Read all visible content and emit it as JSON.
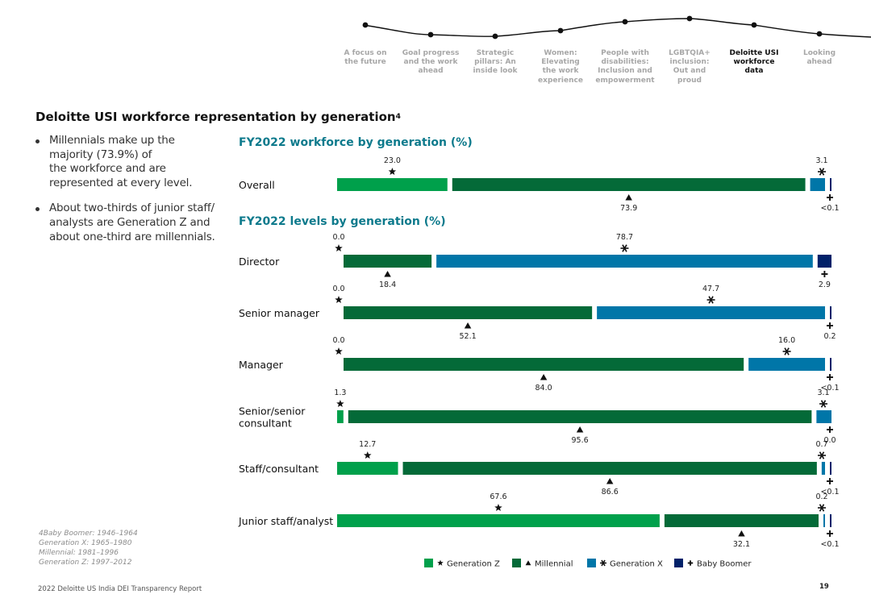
{
  "nav": {
    "items": [
      {
        "label": "A focus on the future",
        "lines": [
          "A focus on",
          "the future"
        ],
        "active": false
      },
      {
        "label": "Goal progress and the work ahead",
        "lines": [
          "Goal progress",
          "and the work",
          "ahead"
        ],
        "active": false
      },
      {
        "label": "Strategic pillars: An inside look",
        "lines": [
          "Strategic",
          "pillars: An",
          "inside look"
        ],
        "active": false
      },
      {
        "label": "Women: Elevating the work experience",
        "lines": [
          "Women:",
          "Elevating",
          "the work",
          "experience"
        ],
        "active": false
      },
      {
        "label": "People with disabilities: Inclusion and empowerment",
        "lines": [
          "People with",
          "disabilities:",
          "Inclusion and",
          "empowerment"
        ],
        "active": false
      },
      {
        "label": "LGBTQIA+ inclusion: Out and proud",
        "lines": [
          "LGBTQIA+",
          "inclusion:",
          "Out and",
          "proud"
        ],
        "active": false
      },
      {
        "label": "Deloitte USI workforce data",
        "lines": [
          "Deloitte USI",
          "workforce",
          "data"
        ],
        "active": true
      },
      {
        "label": "Looking ahead",
        "lines": [
          "Looking",
          "ahead"
        ],
        "active": false
      }
    ]
  },
  "page": {
    "title": "Deloitte USI workforce representation by generation",
    "title_sup": "4",
    "bullets": [
      {
        "lines": [
          "Millennials make up the",
          "majority (73.9%) of",
          "the workforce and are",
          "represented at every level."
        ]
      },
      {
        "lines": [
          "About two-thirds of junior staff/",
          "analysts are Generation Z and",
          "about one-third are millennials."
        ]
      }
    ],
    "footnote": [
      "4Baby Boomer: 1946–1964",
      "Generation X: 1965–1980",
      "Millennial: 1981–1996",
      "Generation Z: 1997–2012"
    ],
    "footer_text": "2022 Deloitte US India DEI Transparency Report",
    "page_number": "19"
  },
  "colors": {
    "gen_z": "#00a04b",
    "millennial": "#046a38",
    "gen_x": "#0076a8",
    "boomer": "#012169",
    "heading_teal": "#0d7a8c",
    "nav_line": "#111111"
  },
  "chart_data": [
    {
      "type": "bar",
      "orientation": "horizontal-stacked",
      "title": "FY2022 workforce by generation (%)",
      "categories": [
        "Overall"
      ],
      "series": [
        {
          "name": "Generation Z",
          "marker": "star",
          "values": [
            23.0
          ],
          "labels": [
            "23.0"
          ]
        },
        {
          "name": "Millennial",
          "marker": "triangle",
          "values": [
            73.9
          ],
          "labels": [
            "73.9"
          ]
        },
        {
          "name": "Generation X",
          "marker": "asterisk",
          "values": [
            3.1
          ],
          "labels": [
            "3.1"
          ]
        },
        {
          "name": "Baby Boomer",
          "marker": "cross",
          "values": [
            0.05
          ],
          "labels": [
            "<0.1"
          ]
        }
      ]
    },
    {
      "type": "bar",
      "orientation": "horizontal-stacked",
      "title": "FY2022 levels by generation (%)",
      "categories": [
        "Director",
        "Senior manager",
        "Manager",
        "Senior/senior consultant",
        "Staff/consultant",
        "Junior staff/analyst"
      ],
      "category_lines": [
        [
          "Director"
        ],
        [
          "Senior manager"
        ],
        [
          "Manager"
        ],
        [
          "Senior/senior",
          "consultant"
        ],
        [
          "Staff/consultant"
        ],
        [
          "Junior staff/analyst"
        ]
      ],
      "series": [
        {
          "name": "Generation Z",
          "marker": "star",
          "values": [
            0.0,
            0.0,
            0.0,
            1.3,
            12.7,
            67.6
          ],
          "labels": [
            "0.0",
            "0.0",
            "0.0",
            "1.3",
            "12.7",
            "67.6"
          ]
        },
        {
          "name": "Millennial",
          "marker": "triangle",
          "values": [
            18.4,
            52.1,
            84.0,
            95.6,
            86.6,
            32.1
          ],
          "labels": [
            "18.4",
            "52.1",
            "84.0",
            "95.6",
            "86.6",
            "32.1"
          ]
        },
        {
          "name": "Generation X",
          "marker": "asterisk",
          "values": [
            78.7,
            47.7,
            16.0,
            3.1,
            0.7,
            0.2
          ],
          "labels": [
            "78.7",
            "47.7",
            "16.0",
            "3.1",
            "0.7",
            "0.2"
          ]
        },
        {
          "name": "Baby Boomer",
          "marker": "cross",
          "values": [
            2.9,
            0.2,
            0.05,
            0.0,
            0.05,
            0.05
          ],
          "labels": [
            "2.9",
            "0.2",
            "<0.1",
            "0.0",
            "<0.1",
            "<0.1"
          ]
        }
      ]
    }
  ],
  "legend": [
    {
      "name": "Generation Z",
      "marker": "star"
    },
    {
      "name": "Millennial",
      "marker": "triangle"
    },
    {
      "name": "Generation X",
      "marker": "asterisk"
    },
    {
      "name": "Baby Boomer",
      "marker": "cross"
    }
  ]
}
